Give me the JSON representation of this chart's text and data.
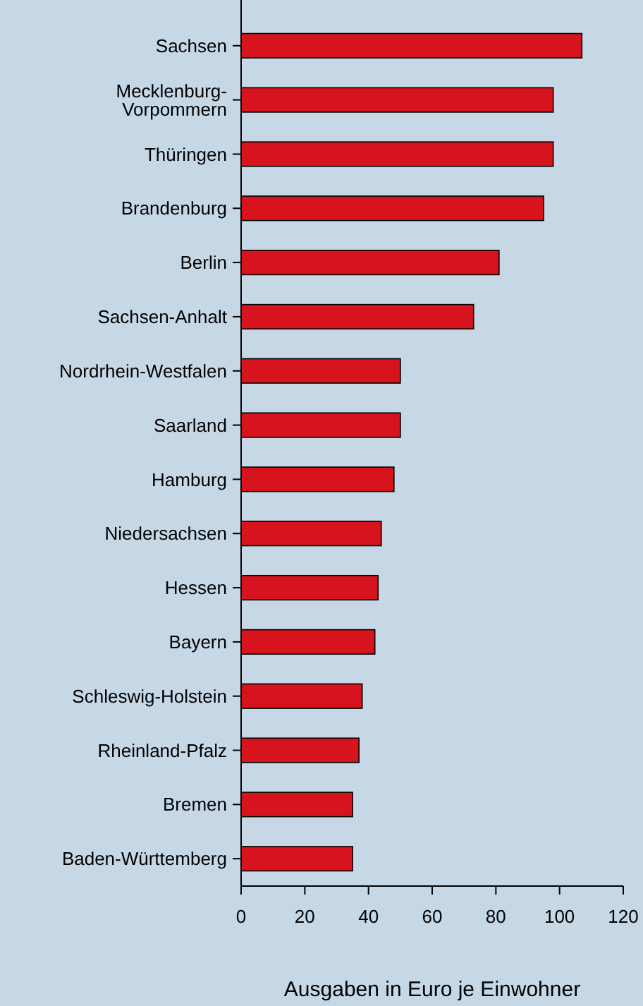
{
  "chart_data": {
    "type": "bar",
    "orientation": "horizontal",
    "xlabel": "Ausgaben in Euro je Einwohner",
    "categories": [
      "Sachsen",
      "Mecklenburg-Vorpommern",
      "Thüringen",
      "Brandenburg",
      "Berlin",
      "Sachsen-Anhalt",
      "Nordrhein-Westfalen",
      "Saarland",
      "Hamburg",
      "Niedersachsen",
      "Hessen",
      "Bayern",
      "Schleswig-Holstein",
      "Rheinland-Pfalz",
      "Bremen",
      "Baden-Württemberg"
    ],
    "values": [
      107,
      98,
      98,
      95,
      81,
      73,
      50,
      50,
      48,
      44,
      43,
      42,
      38,
      37,
      35,
      35
    ],
    "color": "#d7141e",
    "xlim": [
      0,
      120
    ],
    "xticks": [
      0,
      20,
      40,
      60,
      80,
      100,
      120
    ],
    "grid": false
  }
}
